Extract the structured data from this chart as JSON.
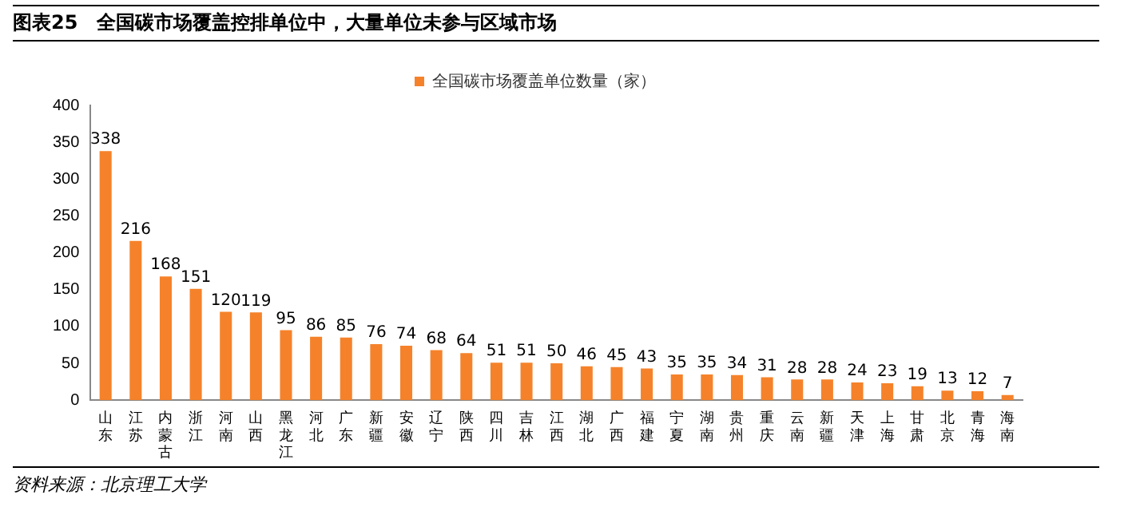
{
  "chart_data": {
    "type": "bar",
    "title": "图表25　全国碳市场覆盖控排单位中，大量单位未参与区域市场",
    "categories": [
      "山东",
      "江苏",
      "内蒙古",
      "浙江",
      "河南",
      "山西",
      "黑龙江",
      "河北",
      "广东",
      "新疆",
      "安徽",
      "辽宁",
      "陕西",
      "四川",
      "吉林",
      "江西",
      "湖北",
      "广西",
      "福建",
      "宁夏",
      "湖南",
      "贵州",
      "重庆",
      "云南",
      "新疆",
      "天津",
      "上海",
      "甘肃",
      "北京",
      "青海",
      "海南"
    ],
    "series": [
      {
        "name": "全国碳市场覆盖单位数量（家）",
        "color": "#f5822a",
        "values": [
          338,
          216,
          168,
          151,
          120,
          119,
          95,
          86,
          85,
          76,
          74,
          68,
          64,
          51,
          51,
          50,
          46,
          45,
          43,
          35,
          35,
          34,
          31,
          28,
          28,
          24,
          23,
          19,
          13,
          12,
          7
        ]
      }
    ],
    "ylim": [
      0,
      400
    ],
    "yticks": [
      0,
      50,
      100,
      150,
      200,
      250,
      300,
      350,
      400
    ],
    "grid": false,
    "legend": "top",
    "data_labels": true,
    "annotations": [
      "资料来源：北京理工大学"
    ]
  }
}
